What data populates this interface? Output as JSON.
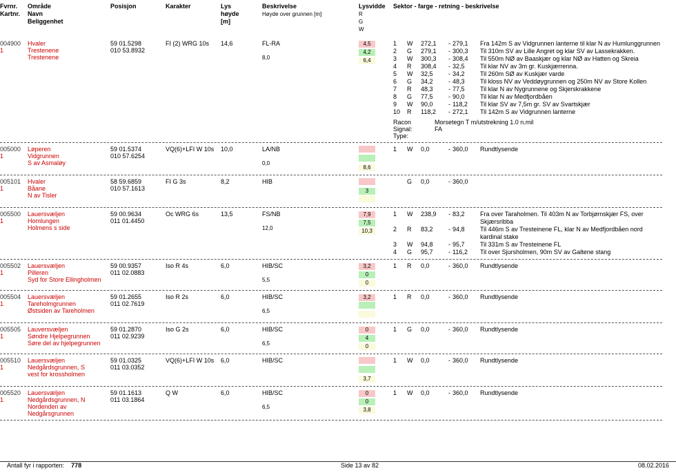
{
  "header": {
    "fvrnr": "Fvrnr.",
    "kartnr": "Kartnr.",
    "omrade": "Område",
    "navn": "Navn",
    "belig": "Beliggenhet",
    "posisjon": "Posisjon",
    "karakter": "Karakter",
    "lyshoyde": "Lys\nhøyde\n[m]",
    "beskriv": "Beskrivelse",
    "beskriv2": "Høyde over grunnen [m]",
    "lysvid": "Lysvidde",
    "rgw": "R\nG\nW",
    "sektor": "Sektor - farge - retning - beskrivelse"
  },
  "entries": [
    {
      "id": "004900",
      "kart": "1",
      "omrade": "Hvaler",
      "navn": "Trestenene",
      "belig": "Trestenene",
      "pos": "59 01.5298\n010 53.8932",
      "karakter": "FI (2) WRG 10s",
      "lyshoyde": "14,6",
      "besk": [
        {
          "t": "FL-RA",
          "b": ""
        },
        {
          "t": "",
          "b": "8,0"
        }
      ],
      "boxes": [
        [
          "r",
          "4,5"
        ],
        [
          "g",
          "4,2"
        ],
        [
          "w",
          "6,4"
        ]
      ],
      "sekt": [
        [
          "1",
          "W",
          "272,1",
          "-",
          "279,1",
          "Fra 142m S av Vidgrunnen lanterne til klar N av Humlunggrunnen"
        ],
        [
          "2",
          "G",
          "279,1",
          "-",
          "300,3",
          "Til 310m SV av Lille Angret og klar SV av Lassekrakken."
        ],
        [
          "3",
          "W",
          "300,3",
          "-",
          "308,4",
          "Til 550m NØ av Baaskjær og klar NØ av Hatten og Skreia"
        ],
        [
          "4",
          "R",
          "308,4",
          "-",
          "32,5",
          "Til klar NV av 3m gr. Kuskjærrenna."
        ],
        [
          "5",
          "W",
          "32,5",
          "-",
          "34,2",
          "Til 260m SØ av Kuskjær varde"
        ],
        [
          "6",
          "G",
          "34,2",
          "-",
          "48,3",
          "Til kloss NV av Veddøygrunnen og 250m NV av Store Kollen"
        ],
        [
          "7",
          "R",
          "48,3",
          "-",
          "77,5",
          "Til klar N av Nygrunnene og Skjerskrakkene"
        ],
        [
          "8",
          "G",
          "77,5",
          "-",
          "90,0",
          "Til klar N av Medfjordbåen"
        ],
        [
          "9",
          "W",
          "90,0",
          "-",
          "118,2",
          "Til klar SV av 7,5m gr. SV av Svartskjær"
        ],
        [
          "10",
          "R",
          "118,2",
          "-",
          "272,1",
          "Til 142m S av Vidgrunnen lanterne"
        ]
      ],
      "extra": {
        "label": "Racon\nSignal:\nType:",
        "txt": "Morsetegn T m/utstrekning 1.0 n.mil\nFA"
      }
    },
    {
      "id": "005000",
      "kart": "1",
      "omrade": "Løperen",
      "navn": "Vidgrunnen",
      "belig": "S av Asmaløy",
      "pos": "59 01.5374\n010 57.6254",
      "karakter": "VQ(6)+LFI W 10s",
      "lyshoyde": "10,0",
      "besk": [
        {
          "t": "LA/NB",
          "b": ""
        },
        {
          "t": "",
          "b": "0,0"
        }
      ],
      "boxes": [
        [
          "r",
          ""
        ],
        [
          "g",
          ""
        ],
        [
          "w",
          "8,6"
        ]
      ],
      "sekt": [
        [
          "1",
          "W",
          "0,0",
          "-",
          "360,0",
          "Rundtlysende"
        ]
      ]
    },
    {
      "id": "005101",
      "kart": "1",
      "omrade": "Hvaler",
      "navn": "Båane",
      "belig": "N av Tisler",
      "pos": "58 59.6859\n010 57.1613",
      "karakter": "FI G 3s",
      "lyshoyde": "8,2",
      "besk": [
        {
          "t": "HIB",
          "b": ""
        }
      ],
      "boxes": [
        [
          "r",
          ""
        ],
        [
          "g",
          "3"
        ],
        [
          "w",
          ""
        ]
      ],
      "sekt": [
        [
          "",
          "G",
          "0,0",
          "-",
          "360,0",
          ""
        ]
      ]
    },
    {
      "id": "005500",
      "kart": "1",
      "omrade": "Lauersvæljen",
      "navn": "Homlungen",
      "belig": "Holmens s side",
      "pos": "59 00.9634\n011 01.4450",
      "karakter": "Oc WRG 6s",
      "lyshoyde": "13,5",
      "besk": [
        {
          "t": "FS/NB",
          "b": ""
        },
        {
          "t": "",
          "b": "12,0"
        }
      ],
      "boxes": [
        [
          "r",
          "7,9"
        ],
        [
          "g",
          "7,5"
        ],
        [
          "w",
          "10,3"
        ]
      ],
      "sekt": [
        [
          "1",
          "W",
          "238,9",
          "-",
          "83,2",
          "Fra over Taraholmen. Til 403m N av Torbjørnskjær FS, over Skjærsribba"
        ],
        [
          "2",
          "R",
          "83,2",
          "-",
          "94,8",
          "Til 446m S av Tresteinene FL, klar N av Medfjordbåen nord kardinal stake"
        ],
        [
          "3",
          "W",
          "94,8",
          "-",
          "95,7",
          "Til 331m S av Tresteinene FL"
        ],
        [
          "4",
          "G",
          "95,7",
          "-",
          "116,2",
          "Til over Sjursholmen, 90m SV av Galtene stang"
        ]
      ]
    },
    {
      "id": "005502",
      "kart": "1",
      "omrade": "Lauersvæljen",
      "navn": "Pilleren",
      "belig": "Syd for Store Ellingholmen",
      "pos": "59 00.9357\n011 02.0883",
      "karakter": "Iso R 4s",
      "lyshoyde": "6,0",
      "besk": [
        {
          "t": "HIB/SC",
          "b": ""
        },
        {
          "t": "",
          "b": "5,5"
        }
      ],
      "boxes": [
        [
          "r",
          "3,2"
        ],
        [
          "g",
          "0"
        ],
        [
          "w",
          "0"
        ]
      ],
      "sekt": [
        [
          "1",
          "R",
          "0,0",
          "-",
          "360,0",
          "Rundtlysende"
        ]
      ]
    },
    {
      "id": "005504",
      "kart": "1",
      "omrade": "Lauersvæljen",
      "navn": "Tareholmgrunnen",
      "belig": "Østsiden av Tareholmen",
      "pos": "59 01.2655\n011 02.7619",
      "karakter": "Iso R 2s",
      "lyshoyde": "6,0",
      "besk": [
        {
          "t": "HIB/SC",
          "b": ""
        },
        {
          "t": "",
          "b": "6,5"
        }
      ],
      "boxes": [
        [
          "r",
          "3,2"
        ],
        [
          "g",
          ""
        ],
        [
          "w",
          ""
        ]
      ],
      "sekt": [
        [
          "1",
          "R",
          "0,0",
          "-",
          "360,0",
          "Rundtlysende"
        ]
      ]
    },
    {
      "id": "005505",
      "kart": "1",
      "omrade": "Lauversvæljen",
      "navn": "Søndre Hjelpegrunnen",
      "belig": "Søre del av hjelpegrunnen",
      "pos": "59 01.2870\n011 02.9239",
      "karakter": "Iso G 2s",
      "lyshoyde": "6,0",
      "besk": [
        {
          "t": "HIB/SC",
          "b": ""
        },
        {
          "t": "",
          "b": "6,5"
        }
      ],
      "boxes": [
        [
          "r",
          "0"
        ],
        [
          "g",
          "4"
        ],
        [
          "w",
          "0"
        ]
      ],
      "sekt": [
        [
          "1",
          "G",
          "0,0",
          "-",
          "360,0",
          "Rundtlysende"
        ]
      ]
    },
    {
      "id": "005510",
      "kart": "1",
      "omrade": "Lauersvæljen",
      "navn": "Nedgårdsgrunnen, S",
      "belig": "vest for krossholmen",
      "pos": "59 01.0325\n011 03.0352",
      "karakter": "VQ(6)+LFI W 10s",
      "lyshoyde": "6,0",
      "besk": [
        {
          "t": "HIB/SC",
          "b": ""
        }
      ],
      "boxes": [
        [
          "r",
          ""
        ],
        [
          "g",
          ""
        ],
        [
          "w",
          "3,7"
        ]
      ],
      "sekt": [
        [
          "1",
          "W",
          "0,0",
          "-",
          "360,0",
          "Rundtlysende"
        ]
      ]
    },
    {
      "id": "005520",
      "kart": "1",
      "omrade": "Lauersvæljen",
      "navn": "Nedgårdsgrunnen, N",
      "belig": "Nordenden av Nedgårsgrunnen",
      "pos": "59 01.1613\n011 03.1864",
      "karakter": "Q W",
      "lyshoyde": "6,0",
      "besk": [
        {
          "t": "HIB/SC",
          "b": ""
        },
        {
          "t": "",
          "b": "6,5"
        }
      ],
      "boxes": [
        [
          "r",
          "0"
        ],
        [
          "g",
          "0"
        ],
        [
          "w",
          "3,8"
        ]
      ],
      "sekt": [
        [
          "1",
          "W",
          "0,0",
          "-",
          "360,0",
          "Rundtlysende"
        ]
      ]
    }
  ],
  "footer": {
    "count_label": "Antall fyr i rapporten:",
    "count": "778",
    "page": "Side 13 av 82",
    "date": "08.02.2016"
  }
}
